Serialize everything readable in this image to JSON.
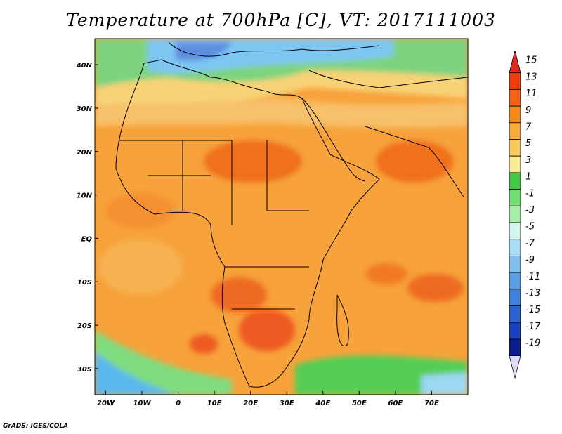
{
  "title": "Temperature at 700hPa [C], VT: 2017111003",
  "credit": "GrADS: IGES/COLA",
  "map": {
    "projection": "latlon",
    "lon_range": [
      -23,
      80
    ],
    "lat_range": [
      -36,
      46
    ],
    "lon_ticks": [
      "20W",
      "10W",
      "0",
      "10E",
      "20E",
      "30E",
      "40E",
      "50E",
      "60E",
      "70E"
    ],
    "lon_values": [
      -20,
      -10,
      0,
      10,
      20,
      30,
      40,
      50,
      60,
      70
    ],
    "lat_ticks": [
      "40N",
      "30N",
      "20N",
      "10N",
      "EQ",
      "10S",
      "20S",
      "30S"
    ],
    "lat_values": [
      40,
      30,
      20,
      10,
      0,
      -10,
      -20,
      -30
    ]
  },
  "colorbar": {
    "labels": [
      "15",
      "13",
      "11",
      "9",
      "7",
      "5",
      "3",
      "1",
      "-1",
      "-3",
      "-5",
      "-7",
      "-9",
      "-11",
      "-13",
      "-15",
      "-17",
      "-19"
    ],
    "colors": [
      "#e8281e",
      "#f23d0f",
      "#f7621a",
      "#f58a1a",
      "#f6ab3a",
      "#f7c95c",
      "#fbeb96",
      "#43c843",
      "#6fe06f",
      "#a7eda7",
      "#d2f5f0",
      "#a8ddf5",
      "#7ec0f0",
      "#5a9ee8",
      "#3f82e0",
      "#2a62d2",
      "#1a42c0",
      "#0a1e8c",
      "#dcdcf8"
    ]
  }
}
